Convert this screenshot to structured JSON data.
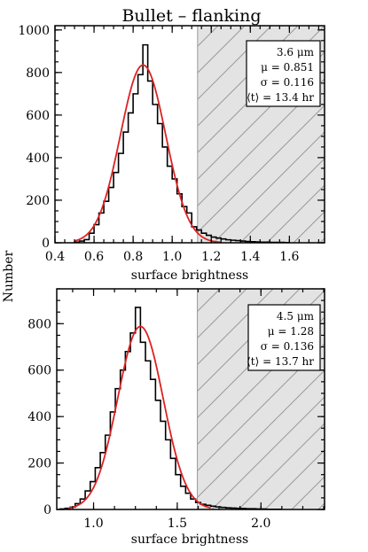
{
  "title": "Bullet – flanking",
  "ylabel": "Number",
  "colors": {
    "fit": "#dd2222",
    "hist": "#000000",
    "shade": "#e3e3e3",
    "hatch": "#9a9a9a"
  },
  "chart_data": [
    {
      "type": "bar",
      "panel": "top",
      "xlabel": "surface brightness",
      "xlim": [
        0.4,
        1.78
      ],
      "ylim": [
        0,
        1020
      ],
      "xticks": [
        0.4,
        0.6,
        0.8,
        1.0,
        1.2,
        1.4,
        1.6
      ],
      "xtick_labels": [
        "0.4",
        "0.6",
        "0.8",
        "1.0",
        "1.2",
        "1.4",
        "1.6"
      ],
      "yticks": [
        0,
        200,
        400,
        600,
        800,
        1000
      ],
      "ytick_labels": [
        "0",
        "200",
        "400",
        "600",
        "800",
        "1000"
      ],
      "bin_edges": [
        0.5,
        0.525,
        0.55,
        0.575,
        0.6,
        0.625,
        0.65,
        0.675,
        0.7,
        0.725,
        0.75,
        0.775,
        0.8,
        0.825,
        0.85,
        0.875,
        0.9,
        0.925,
        0.95,
        0.975,
        1.0,
        1.025,
        1.05,
        1.075,
        1.1,
        1.125,
        1.15,
        1.175,
        1.2,
        1.225,
        1.25,
        1.275,
        1.3,
        1.325,
        1.35,
        1.375,
        1.4,
        1.425,
        1.45,
        1.475,
        1.5,
        1.525,
        1.55,
        1.575,
        1.6
      ],
      "counts": [
        3,
        8,
        15,
        45,
        85,
        140,
        195,
        260,
        330,
        420,
        520,
        610,
        700,
        790,
        930,
        760,
        650,
        560,
        450,
        360,
        300,
        230,
        170,
        140,
        75,
        60,
        45,
        35,
        27,
        22,
        18,
        14,
        12,
        10,
        8,
        6,
        5,
        4,
        3,
        3,
        2,
        2,
        2,
        1
      ],
      "fit": {
        "mu": 0.851,
        "sigma": 0.116,
        "peak": 835,
        "range": [
          0.5,
          1.25
        ]
      },
      "shaded_from": 1.13,
      "legend": {
        "band": "3.6 μm",
        "mu": "μ = 0.851",
        "sigma": "σ = 0.116",
        "time": "⟨t⟩ = 13.4 hr"
      }
    },
    {
      "type": "bar",
      "panel": "bottom",
      "xlabel": "surface brightness",
      "xlim": [
        0.78,
        2.38
      ],
      "ylim": [
        0,
        950
      ],
      "xticks": [
        1.0,
        1.5,
        2.0
      ],
      "xtick_labels": [
        "1.0",
        "1.5",
        "2.0"
      ],
      "yticks": [
        0,
        200,
        400,
        600,
        800
      ],
      "ytick_labels": [
        "0",
        "200",
        "400",
        "600",
        "800"
      ],
      "bin_edges": [
        0.8,
        0.83,
        0.86,
        0.89,
        0.92,
        0.95,
        0.98,
        1.01,
        1.04,
        1.07,
        1.1,
        1.13,
        1.16,
        1.19,
        1.22,
        1.25,
        1.28,
        1.31,
        1.34,
        1.37,
        1.4,
        1.43,
        1.46,
        1.49,
        1.52,
        1.55,
        1.58,
        1.61,
        1.64,
        1.67,
        1.7,
        1.73,
        1.76,
        1.79,
        1.82,
        1.85,
        1.88,
        1.91,
        1.94,
        1.97,
        2.0,
        2.03,
        2.06,
        2.09,
        2.12
      ],
      "counts": [
        2,
        5,
        10,
        25,
        45,
        80,
        120,
        180,
        245,
        320,
        420,
        520,
        600,
        680,
        760,
        870,
        720,
        640,
        560,
        470,
        380,
        300,
        220,
        150,
        100,
        70,
        45,
        30,
        22,
        18,
        14,
        11,
        9,
        7,
        6,
        5,
        4,
        3,
        3,
        2,
        2,
        1,
        1,
        1
      ],
      "fit": {
        "mu": 1.28,
        "sigma": 0.136,
        "peak": 788,
        "range": [
          0.85,
          1.7
        ]
      },
      "shaded_from": 1.62,
      "legend": {
        "band": "4.5 μm",
        "mu": "μ = 1.28",
        "sigma": "σ = 0.136",
        "time": "⟨t⟩ = 13.7 hr"
      }
    }
  ]
}
